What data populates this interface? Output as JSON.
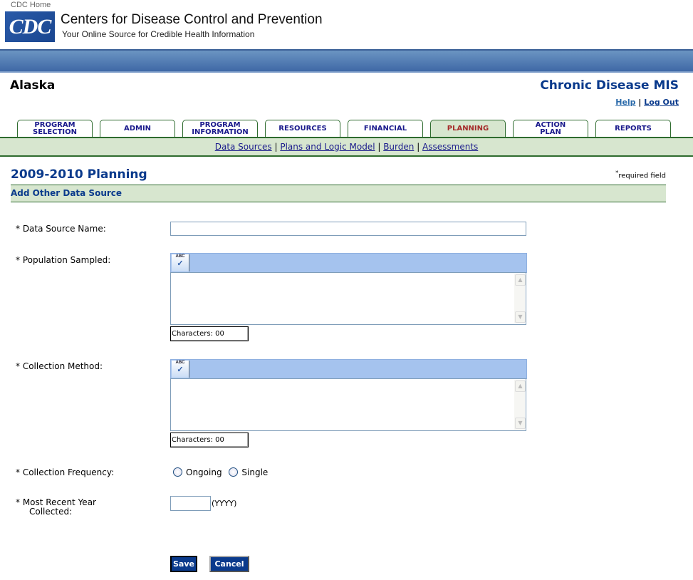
{
  "header": {
    "cdc_home": "CDC Home",
    "logo_text": "CDC",
    "org_name": "Centers for Disease Control and Prevention",
    "tagline": "Your Online Source for Credible Health Information"
  },
  "state": "Alaska",
  "app_title": "Chronic Disease MIS",
  "user_links": {
    "help": "Help",
    "separator": "|",
    "logout": "Log Out"
  },
  "tabs": [
    {
      "line1": "PROGRAM",
      "line2": "SELECTION"
    },
    {
      "line1": "ADMIN",
      "line2": ""
    },
    {
      "line1": "PROGRAM",
      "line2": "INFORMATION"
    },
    {
      "line1": "RESOURCES",
      "line2": ""
    },
    {
      "line1": "FINANCIAL",
      "line2": ""
    },
    {
      "line1": "PLANNING",
      "line2": "",
      "active": true
    },
    {
      "line1": "ACTION",
      "line2": "PLAN"
    },
    {
      "line1": "REPORTS",
      "line2": ""
    }
  ],
  "subnav": [
    "Data Sources",
    "Plans and Logic Model",
    "Burden",
    "Assessments"
  ],
  "page_title": "2009-2010 Planning",
  "required_note": {
    "star": "*",
    "text": "required field"
  },
  "section_title": "Add Other Data Source",
  "form": {
    "data_source_name": {
      "label": "* Data Source Name:",
      "value": ""
    },
    "population_sampled": {
      "label": "* Population Sampled:",
      "value": "",
      "spell_icon": "spellcheck-icon",
      "count": "Characters: 00"
    },
    "collection_method": {
      "label": "* Collection Method:",
      "value": "",
      "spell_icon": "spellcheck-icon",
      "count": "Characters: 00"
    },
    "collection_frequency": {
      "label": "* Collection Frequency:",
      "options": [
        "Ongoing",
        "Single"
      ],
      "selected": null
    },
    "most_recent_year": {
      "label_line1": "* Most Recent Year",
      "label_line2": "Collected:",
      "value": "",
      "hint": "(YYYY)"
    }
  },
  "buttons": {
    "save": "Save",
    "cancel": "Cancel"
  },
  "colors": {
    "brand_blue": "#0a3a8c",
    "nav_green": "#d7e6cf",
    "active_tab_text": "#a52a2a"
  }
}
